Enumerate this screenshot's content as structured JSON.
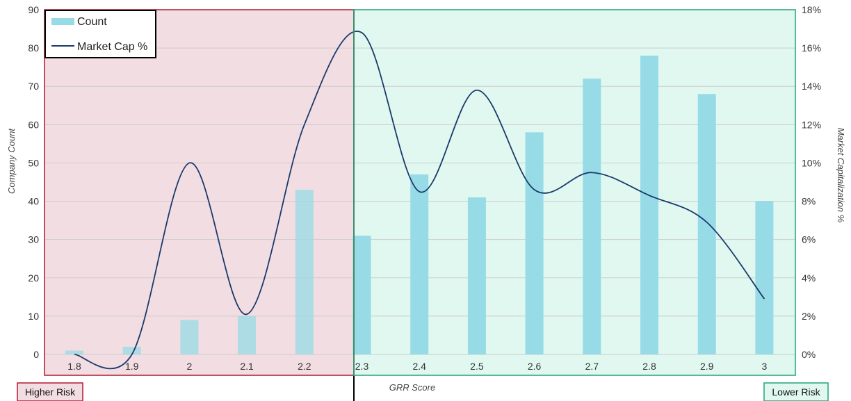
{
  "chart_data": {
    "type": "bar",
    "categories": [
      "1.8",
      "1.9",
      "2",
      "2.1",
      "2.2",
      "2.3",
      "2.4",
      "2.5",
      "2.6",
      "2.7",
      "2.8",
      "2.9",
      "3"
    ],
    "series": [
      {
        "name": "Count",
        "kind": "bar",
        "axis": "left",
        "values": [
          1,
          2,
          9,
          10,
          43,
          31,
          47,
          41,
          58,
          72,
          78,
          68,
          40
        ]
      },
      {
        "name": "Market Cap %",
        "kind": "smooth-line",
        "axis": "right",
        "values": [
          0.0,
          0.0,
          10.0,
          2.1,
          12.0,
          16.8,
          8.5,
          13.8,
          8.6,
          9.5,
          8.3,
          6.9,
          2.9
        ]
      }
    ],
    "xlabel": "GRR Score",
    "ylabel": "Company Count",
    "ylabel_right": "Market Capitalization %",
    "ylim": [
      0,
      90
    ],
    "yticks": [
      "0",
      "10",
      "20",
      "30",
      "40",
      "50",
      "60",
      "70",
      "80",
      "90"
    ],
    "ylim_right": [
      0,
      18
    ],
    "yticks_right": [
      "0%",
      "2%",
      "4%",
      "6%",
      "8%",
      "10%",
      "12%",
      "14%",
      "16%",
      "18%"
    ],
    "grid": true,
    "legend_position": "top-left",
    "zones": [
      {
        "label": "Higher Risk",
        "side": "left"
      },
      {
        "label": "Lower Risk",
        "side": "right"
      }
    ],
    "colors": {
      "bar": "#97dbe6",
      "line": "#1a3a6b",
      "high_risk_fill": "#f2dde2",
      "high_risk_border": "#b5263b",
      "low_risk_fill": "#e0f8f0",
      "low_risk_border": "#2eaa80",
      "grid": "#cccccc"
    }
  }
}
